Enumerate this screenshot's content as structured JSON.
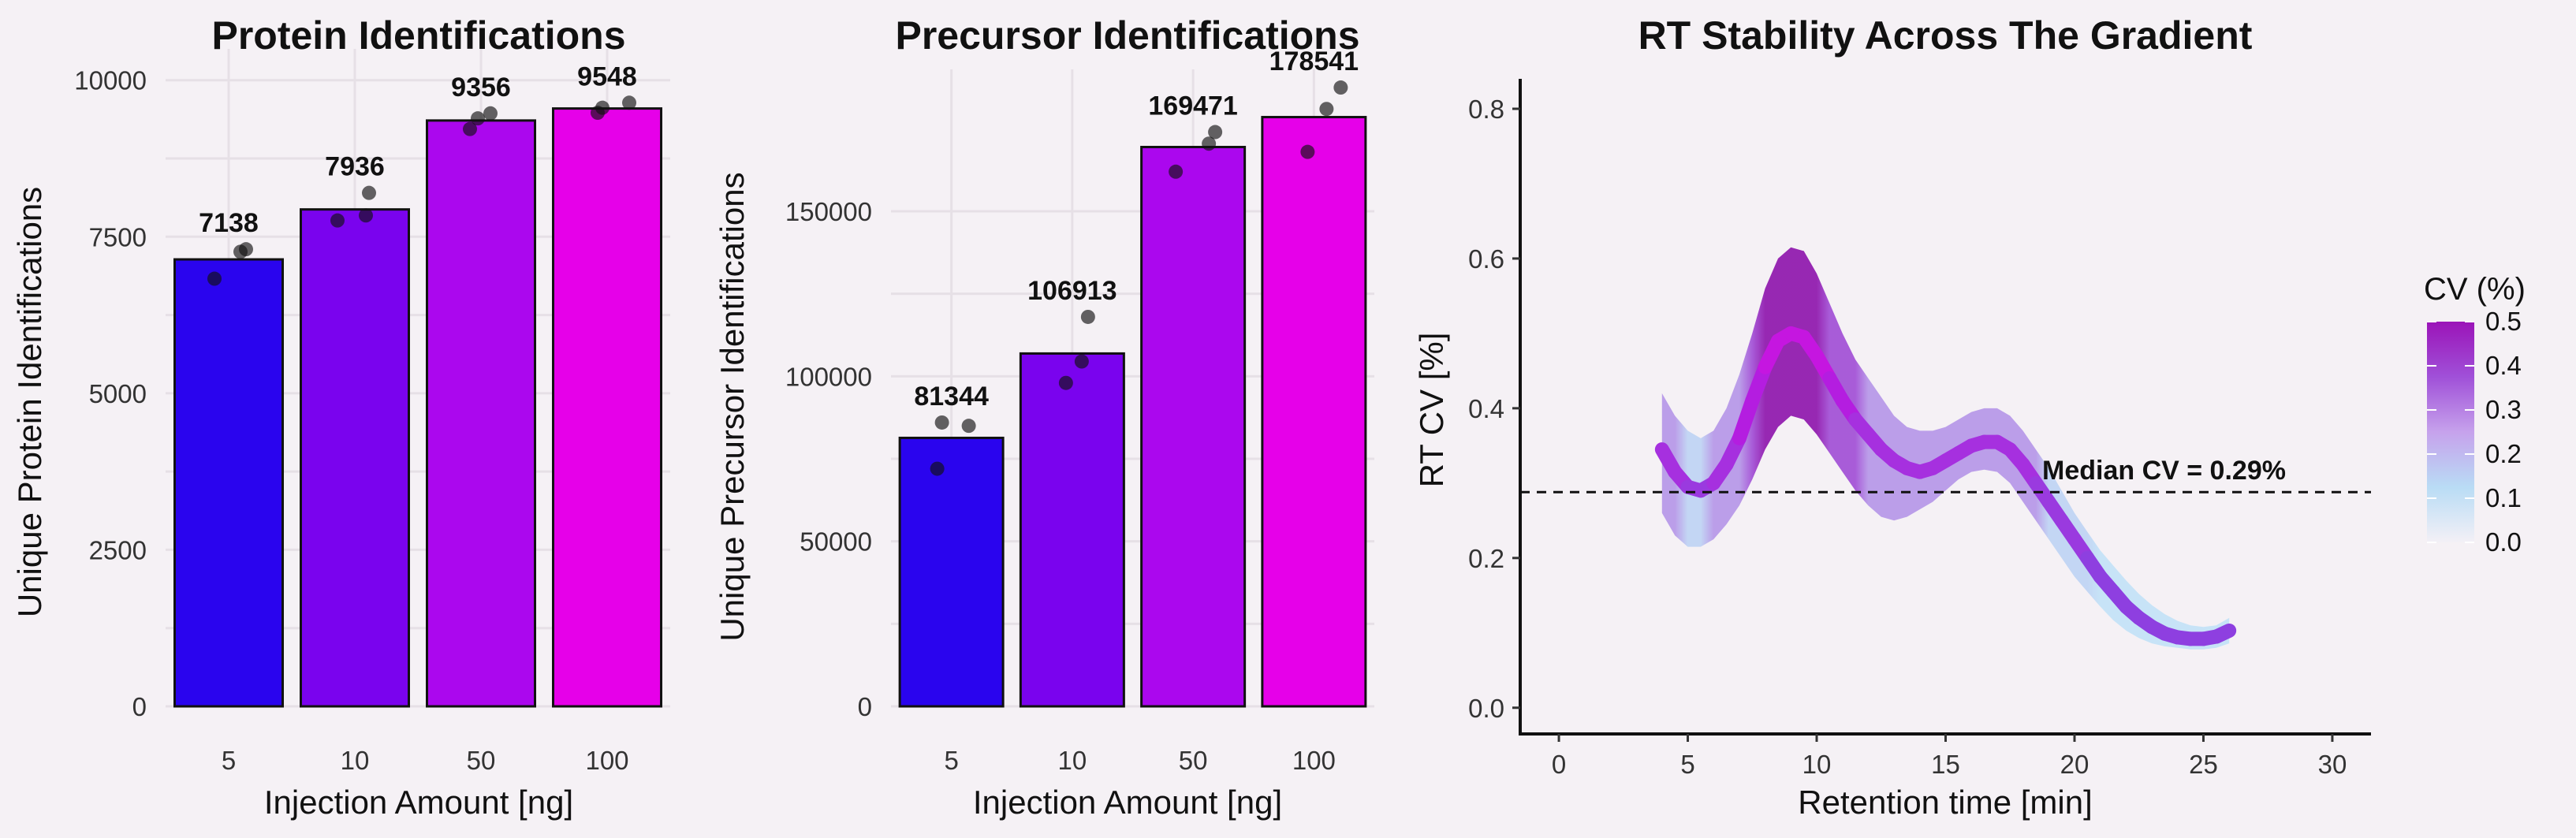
{
  "chart_data": [
    {
      "type": "bar",
      "title": "Protein Identifications",
      "xlabel": "Injection Amount [ng]",
      "ylabel": "Unique Protein Identifications",
      "categories": [
        "5",
        "10",
        "50",
        "100"
      ],
      "values": [
        7138,
        7936,
        9356,
        9548
      ],
      "value_labels": [
        "7138",
        "7936",
        "9356",
        "9548"
      ],
      "replicates": [
        [
          6830,
          7260,
          7300
        ],
        [
          7760,
          7840,
          8200
        ],
        [
          9220,
          9390,
          9470
        ],
        [
          9480,
          9560,
          9640
        ]
      ],
      "bar_colors": [
        "#2a04ee",
        "#7a03ee",
        "#ab07ee",
        "#e600e9"
      ],
      "ylim": [
        0,
        10500
      ],
      "yticks": [
        0,
        2500,
        5000,
        7500,
        10000
      ],
      "ytick_labels": [
        "0",
        "2500",
        "5000",
        "7500",
        "10000"
      ]
    },
    {
      "type": "bar",
      "title": "Precursor Identifications",
      "xlabel": "Injection Amount [ng]",
      "ylabel": "Unique Precursor Identifications",
      "categories": [
        "5",
        "10",
        "50",
        "100"
      ],
      "values": [
        81344,
        106913,
        169471,
        178541
      ],
      "value_labels": [
        "81344",
        "106913",
        "169471",
        "178541"
      ],
      "replicates": [
        [
          72000,
          85000,
          86000
        ],
        [
          98000,
          104500,
          118000
        ],
        [
          162000,
          170500,
          174000
        ],
        [
          168000,
          181000,
          187500
        ]
      ],
      "bar_colors": [
        "#2a04ee",
        "#7a03ee",
        "#ab07ee",
        "#e600e9"
      ],
      "ylim": [
        0,
        193000
      ],
      "yticks": [
        0,
        50000,
        100000,
        150000
      ],
      "ytick_labels": [
        "0",
        "50000",
        "100000",
        "150000"
      ]
    },
    {
      "type": "line",
      "title": "RT Stability Across The Gradient",
      "xlabel": "Retention time [min]",
      "ylabel": "RT CV [%]",
      "xlim": [
        -1.5,
        31.5
      ],
      "ylim": [
        -0.035,
        0.84
      ],
      "xticks": [
        0,
        5,
        10,
        15,
        20,
        25,
        30
      ],
      "xtick_labels": [
        "0",
        "5",
        "10",
        "15",
        "20",
        "25",
        "30"
      ],
      "yticks": [
        0.0,
        0.2,
        0.4,
        0.6,
        0.8
      ],
      "ytick_labels": [
        "0.0",
        "0.2",
        "0.4",
        "0.6",
        "0.8"
      ],
      "x": [
        4,
        4.5,
        5,
        5.5,
        6,
        6.5,
        7,
        7.5,
        8,
        8.5,
        9,
        9.5,
        10,
        10.5,
        11,
        11.5,
        12,
        12.5,
        13,
        13.5,
        14,
        14.5,
        15,
        15.5,
        16,
        16.5,
        17,
        17.5,
        18,
        18.5,
        19,
        19.5,
        20,
        20.5,
        21,
        21.5,
        22,
        22.5,
        23,
        23.5,
        24,
        24.5,
        25,
        25.5,
        26
      ],
      "y": [
        0.345,
        0.315,
        0.295,
        0.29,
        0.3,
        0.325,
        0.36,
        0.41,
        0.455,
        0.49,
        0.5,
        0.495,
        0.47,
        0.44,
        0.41,
        0.385,
        0.365,
        0.345,
        0.33,
        0.32,
        0.315,
        0.32,
        0.33,
        0.34,
        0.35,
        0.355,
        0.355,
        0.345,
        0.325,
        0.3,
        0.275,
        0.25,
        0.225,
        0.2,
        0.175,
        0.155,
        0.135,
        0.12,
        0.108,
        0.099,
        0.094,
        0.092,
        0.092,
        0.095,
        0.103
      ],
      "lower": [
        0.26,
        0.23,
        0.215,
        0.215,
        0.225,
        0.245,
        0.27,
        0.305,
        0.345,
        0.375,
        0.39,
        0.385,
        0.365,
        0.34,
        0.315,
        0.29,
        0.27,
        0.255,
        0.25,
        0.255,
        0.265,
        0.275,
        0.29,
        0.305,
        0.315,
        0.318,
        0.315,
        0.3,
        0.275,
        0.25,
        0.225,
        0.2,
        0.175,
        0.155,
        0.135,
        0.117,
        0.103,
        0.093,
        0.086,
        0.082,
        0.08,
        0.078,
        0.078,
        0.08,
        0.086
      ],
      "upper": [
        0.42,
        0.39,
        0.37,
        0.36,
        0.37,
        0.4,
        0.445,
        0.5,
        0.56,
        0.6,
        0.615,
        0.61,
        0.58,
        0.54,
        0.5,
        0.465,
        0.44,
        0.415,
        0.39,
        0.375,
        0.37,
        0.37,
        0.375,
        0.385,
        0.395,
        0.4,
        0.4,
        0.39,
        0.37,
        0.345,
        0.32,
        0.29,
        0.26,
        0.235,
        0.21,
        0.19,
        0.17,
        0.152,
        0.137,
        0.125,
        0.116,
        0.11,
        0.108,
        0.11,
        0.12
      ],
      "median_cv": 0.288,
      "annotation": "Median CV = 0.29%",
      "legend": {
        "title": "CV (%)",
        "position": "right",
        "labels": [
          "0.5",
          "0.4",
          "0.3",
          "0.2",
          "0.1",
          "0.0"
        ],
        "values": [
          0.5,
          0.4,
          0.3,
          0.2,
          0.1,
          0.0
        ],
        "colors": [
          "#f3f0f6",
          "#b9dcf5",
          "#c6a2ec",
          "#a050d8",
          "#9b14b8"
        ]
      }
    }
  ]
}
